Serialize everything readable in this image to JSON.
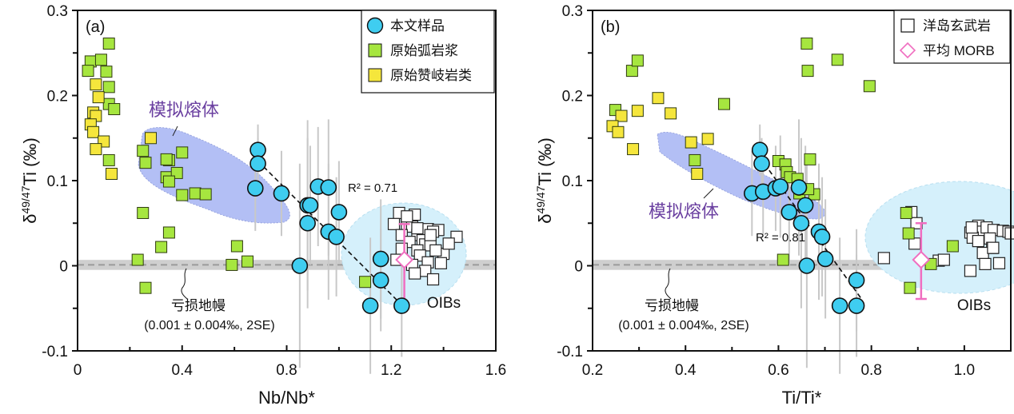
{
  "chart_data": [
    {
      "type": "scatter",
      "panel_label": "(a)",
      "xlabel": "Nb/Nb*",
      "ylabel_prefix": "δ",
      "ylabel_sup": "49/47",
      "ylabel_suffix": "Ti (‰)",
      "xlim": [
        0,
        1.6
      ],
      "ylim": [
        -0.1,
        0.3
      ],
      "xticks": [
        0,
        0.4,
        0.8,
        1.2,
        1.6
      ],
      "xtick_labels": [
        "0",
        "0.4",
        "0.8",
        "1.2",
        "1.6"
      ],
      "xminor": [
        0.2,
        0.6,
        1.0,
        1.4
      ],
      "yticks": [
        -0.1,
        0,
        0.1,
        0.2,
        0.3
      ],
      "ytick_labels": [
        "-0.1",
        "0",
        "0.1",
        "0.2",
        "0.3"
      ],
      "yminor": [
        -0.05,
        0.05,
        0.15,
        0.25
      ],
      "legend": {
        "position": "top-right",
        "entries": [
          {
            "label": "本文样品",
            "marker": "circle",
            "color": "#3fcdf0"
          },
          {
            "label": "原始弧岩浆",
            "marker": "square",
            "color": "#a6e63f"
          },
          {
            "label": "原始赞岐岩类",
            "marker": "square",
            "color": "#f5e63c"
          }
        ]
      },
      "annotations": {
        "melt_label": "模拟熔体",
        "r2": "R² = 0.71",
        "mantle_label": "亏损地幔",
        "mantle_value": "(0.001 ± 0.004‰, 2SE)",
        "oib_label": "OIBs"
      },
      "depleted_mantle": {
        "value": 0.001,
        "uncertainty": 0.004
      },
      "regression": {
        "x": [
          0.69,
          1.24
        ],
        "y": [
          0.123,
          -0.046
        ],
        "r2": 0.71
      },
      "morb": {
        "x": 1.25,
        "y": 0.007,
        "err_low": -0.046,
        "err_high": 0.049
      },
      "series": [
        {
          "name": "本文样品",
          "marker": "circle",
          "x": [
            0.69,
            0.69,
            0.68,
            0.78,
            0.88,
            0.92,
            0.96,
            0.89,
            1.0,
            0.88,
            0.96,
            0.99,
            0.85,
            1.16,
            1.16,
            1.12,
            1.24
          ],
          "y": [
            0.136,
            0.12,
            0.091,
            0.085,
            0.071,
            0.093,
            0.092,
            0.071,
            0.063,
            0.05,
            0.04,
            0.034,
            0.0,
            0.008,
            -0.017,
            -0.047,
            -0.047
          ],
          "err": [
            0.03,
            0.03,
            0.05,
            0.05,
            0.1,
            0.07,
            0.08,
            0.07,
            0.06,
            0.1,
            0.08,
            0.07,
            0.12,
            0.07,
            0.06,
            0.08,
            0.06
          ]
        },
        {
          "name": "原始弧岩浆",
          "marker": "square",
          "x": [
            0.12,
            0.05,
            0.09,
            0.04,
            0.11,
            0.12,
            0.12,
            0.14,
            0.12,
            0.25,
            0.26,
            0.35,
            0.34,
            0.4,
            0.34,
            0.38,
            0.35,
            0.4,
            0.45,
            0.49,
            0.25,
            0.35,
            0.32,
            0.23,
            0.26,
            0.59,
            0.61,
            0.65,
            1.1
          ],
          "y": [
            0.261,
            0.24,
            0.242,
            0.229,
            0.228,
            0.21,
            0.19,
            0.184,
            0.124,
            0.135,
            0.121,
            0.124,
            0.125,
            0.133,
            0.104,
            0.109,
            0.099,
            0.083,
            0.085,
            0.084,
            0.062,
            0.039,
            0.022,
            0.007,
            -0.026,
            0.001,
            0.023,
            0.005,
            -0.019
          ]
        },
        {
          "name": "原始赞岐岩类",
          "marker": "square",
          "x": [
            0.07,
            0.08,
            0.06,
            0.07,
            0.05,
            0.06,
            0.1,
            0.07,
            0.13,
            0.28
          ],
          "y": [
            0.213,
            0.198,
            0.18,
            0.176,
            0.166,
            0.157,
            0.146,
            0.137,
            0.108,
            0.15
          ]
        },
        {
          "name": "洋岛玄武岩",
          "marker": "open-square",
          "x": [
            1.23,
            1.29,
            1.21,
            1.26,
            1.28,
            1.24,
            1.3,
            1.34,
            1.38,
            1.36,
            1.32,
            1.45,
            1.33,
            1.27,
            1.24,
            1.3,
            1.35,
            1.4,
            1.37,
            1.31,
            1.22,
            1.34,
            1.28,
            1.39,
            1.33,
            1.36,
            1.29,
            1.42,
            1.35,
            1.3,
            1.26
          ],
          "y": [
            0.062,
            0.06,
            0.049,
            0.049,
            0.046,
            0.036,
            0.036,
            0.043,
            0.042,
            0.04,
            0.03,
            0.034,
            0.025,
            0.028,
            0.02,
            0.018,
            0.024,
            0.014,
            0.018,
            0.012,
            0.007,
            0.004,
            0.001,
            0.003,
            -0.006,
            -0.016,
            -0.009,
            0.026,
            0.036,
            0.044,
            0.058
          ]
        }
      ]
    },
    {
      "type": "scatter",
      "panel_label": "(b)",
      "xlabel": "Ti/Ti*",
      "ylabel_prefix": "δ",
      "ylabel_sup": "49/47",
      "ylabel_suffix": "Ti (‰)",
      "xlim": [
        0.2,
        1.1
      ],
      "ylim": [
        -0.1,
        0.3
      ],
      "xticks": [
        0.2,
        0.4,
        0.6,
        0.8,
        1.0
      ],
      "xtick_labels": [
        "0.2",
        "0.4",
        "0.6",
        "0.8",
        "1.0"
      ],
      "xminor": [
        0.3,
        0.5,
        0.7,
        0.9
      ],
      "yticks": [
        -0.1,
        0,
        0.1,
        0.2,
        0.3
      ],
      "ytick_labels": [
        "-0.1",
        "0",
        "0.1",
        "0.2",
        "0.3"
      ],
      "yminor": [
        -0.05,
        0.05,
        0.15,
        0.25
      ],
      "legend": {
        "position": "top-right",
        "entries": [
          {
            "label": "洋岛玄武岩",
            "marker": "open-square",
            "color": "#ffffff"
          },
          {
            "label": "平均 MORB",
            "marker": "open-diamond",
            "color": "#f06ec0"
          }
        ]
      },
      "annotations": {
        "melt_label": "模拟熔体",
        "r2": "R² = 0.81",
        "mantle_label": "亏损地幔",
        "mantle_value": "(0.001 ± 0.004‰, 2SE)",
        "oib_label": "OIBs"
      },
      "depleted_mantle": {
        "value": 0.001,
        "uncertainty": 0.004
      },
      "regression": {
        "x": [
          0.55,
          0.78
        ],
        "y": [
          0.135,
          -0.04
        ],
        "r2": 0.81
      },
      "morb": {
        "x": 0.907,
        "y": 0.007,
        "err_low": -0.039,
        "err_high": 0.05
      },
      "series": [
        {
          "name": "本文样品",
          "marker": "circle",
          "x": [
            0.56,
            0.564,
            0.543,
            0.567,
            0.594,
            0.604,
            0.644,
            0.658,
            0.623,
            0.649,
            0.687,
            0.694,
            0.661,
            0.701,
            0.732,
            0.768,
            0.768
          ],
          "y": [
            0.136,
            0.12,
            0.085,
            0.087,
            0.091,
            0.093,
            0.092,
            0.071,
            0.063,
            0.05,
            0.04,
            0.034,
            0.0,
            0.008,
            -0.047,
            -0.047,
            -0.017
          ],
          "err": [
            0.03,
            0.03,
            0.05,
            0.05,
            0.05,
            0.06,
            0.08,
            0.07,
            0.06,
            0.1,
            0.08,
            0.07,
            0.12,
            0.07,
            0.08,
            0.06,
            0.06
          ]
        },
        {
          "name": "原始弧岩浆",
          "marker": "square",
          "x": [
            0.661,
            0.727,
            0.663,
            0.796,
            0.285,
            0.297,
            0.249,
            0.483,
            0.42,
            0.6,
            0.615,
            0.618,
            0.625,
            0.641,
            0.668,
            0.677,
            0.645,
            0.664,
            0.61,
            0.88,
            0.875,
            0.928,
            0.883,
            0.975
          ],
          "y": [
            0.261,
            0.242,
            0.229,
            0.211,
            0.229,
            0.241,
            0.183,
            0.19,
            0.124,
            0.123,
            0.119,
            0.11,
            0.104,
            0.102,
            0.125,
            0.084,
            0.085,
            0.09,
            0.007,
            0.038,
            0.062,
            0.002,
            -0.026,
            0.023
          ]
        },
        {
          "name": "原始赞岐岩类",
          "marker": "square",
          "x": [
            0.341,
            0.297,
            0.368,
            0.262,
            0.243,
            0.255,
            0.287,
            0.412,
            0.448,
            0.425
          ],
          "y": [
            0.197,
            0.182,
            0.179,
            0.176,
            0.164,
            0.157,
            0.137,
            0.145,
            0.149,
            0.108
          ]
        },
        {
          "name": "洋岛玄武岩",
          "marker": "open-square",
          "x": [
            0.886,
            0.897,
            0.893,
            0.827,
            0.945,
            0.956,
            1.03,
            1.037,
            1.013,
            1.048,
            1.063,
            1.083,
            1.095,
            1.1,
            1.018,
            1.03,
            1.055,
            1.06,
            1.04,
            1.013,
            1.075,
            1.016,
            1.045,
            1.062
          ],
          "y": [
            0.063,
            0.05,
            0.026,
            0.009,
            0.006,
            0.007,
            0.047,
            0.04,
            0.039,
            0.045,
            0.042,
            0.041,
            0.04,
            0.038,
            0.033,
            0.029,
            0.032,
            0.021,
            0.015,
            -0.006,
            0.003,
            0.045,
            0.002,
            0.021
          ]
        }
      ]
    }
  ]
}
